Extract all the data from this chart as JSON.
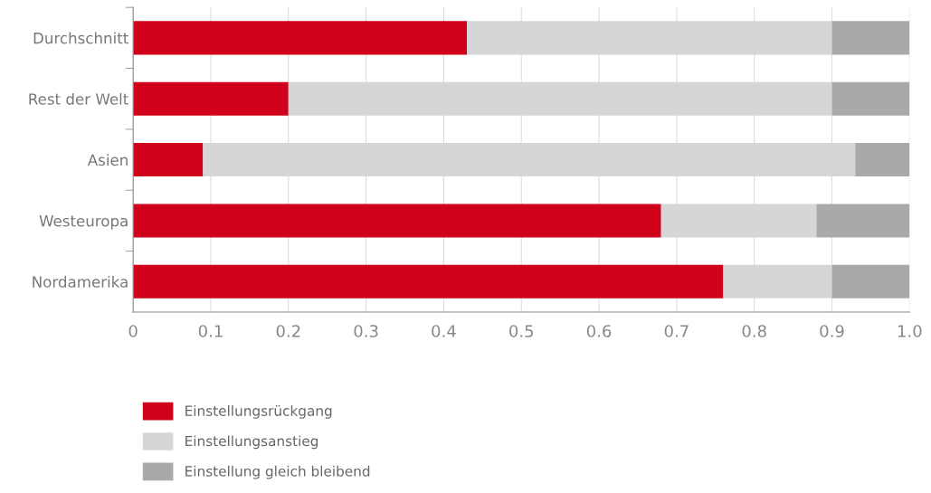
{
  "chart_data": {
    "type": "bar",
    "orientation": "horizontal",
    "stacked": true,
    "categories": [
      "Durchschnitt",
      "Rest der Welt",
      "Asien",
      "Westeuropa",
      "Nordamerika"
    ],
    "series": [
      {
        "name": "Einstellungsrückgang",
        "color": "#d0021b",
        "values": [
          0.43,
          0.2,
          0.09,
          0.68,
          0.76
        ]
      },
      {
        "name": "Einstellungsanstieg",
        "color": "#d6d6d8",
        "values": [
          0.47,
          0.7,
          0.84,
          0.2,
          0.14
        ]
      },
      {
        "name": "Einstellung gleich bleibend",
        "color": "#a9a9ab",
        "values": [
          0.1,
          0.1,
          0.07,
          0.12,
          0.1
        ]
      }
    ],
    "xlim": [
      0,
      1
    ],
    "xticks": [
      0,
      0.1,
      0.2,
      0.3,
      0.4,
      0.5,
      0.6,
      0.7,
      0.8,
      0.9,
      {
        "value": 1,
        "label": "1.0"
      }
    ],
    "grid": "x",
    "legend": "bottom left"
  }
}
